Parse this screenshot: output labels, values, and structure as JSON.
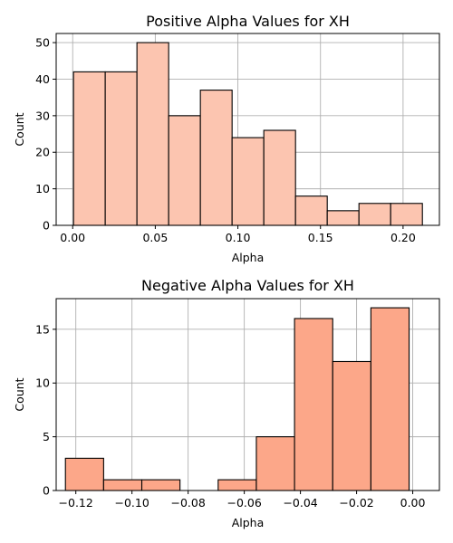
{
  "chart_data": [
    {
      "type": "histogram",
      "title": "Positive Alpha Values for XH",
      "xlabel": "Alpha",
      "ylabel": "Count",
      "xlim": [
        -0.01,
        0.222
      ],
      "ylim": [
        0,
        52.5
      ],
      "xticks": [
        0.0,
        0.05,
        0.1,
        0.15,
        0.2
      ],
      "xtick_labels": [
        "0.00",
        "0.05",
        "0.10",
        "0.15",
        "0.20"
      ],
      "yticks": [
        0,
        10,
        20,
        30,
        40,
        50
      ],
      "ytick_labels": [
        "0",
        "10",
        "20",
        "30",
        "40",
        "50"
      ],
      "bin_edges": [
        0.0005,
        0.0197,
        0.0389,
        0.0581,
        0.0773,
        0.0965,
        0.1157,
        0.1349,
        0.1541,
        0.1733,
        0.1925,
        0.2117
      ],
      "counts": [
        42,
        42,
        50,
        30,
        37,
        24,
        26,
        8,
        4,
        6,
        6
      ],
      "color": "#fcc5b0",
      "grid": true
    },
    {
      "type": "histogram",
      "title": "Negative Alpha Values for XH",
      "xlabel": "Alpha",
      "ylabel": "Count",
      "xlim": [
        -0.127,
        0.0095
      ],
      "ylim": [
        0,
        17.85
      ],
      "xticks": [
        -0.12,
        -0.1,
        -0.08,
        -0.06,
        -0.04,
        -0.02,
        0.0
      ],
      "xtick_labels": [
        "−0.12",
        "−0.10",
        "−0.08",
        "−0.06",
        "−0.04",
        "−0.02",
        "0.00"
      ],
      "yticks": [
        0,
        5,
        10,
        15
      ],
      "ytick_labels": [
        "0",
        "5",
        "10",
        "15"
      ],
      "bin_edges": [
        -0.1237,
        -0.1101,
        -0.0965,
        -0.0829,
        -0.0693,
        -0.0557,
        -0.0421,
        -0.0285,
        -0.0149,
        -0.0013
      ],
      "counts": [
        3,
        1,
        1,
        0,
        1,
        5,
        16,
        12,
        17
      ],
      "color": "#fca789",
      "grid": true
    }
  ]
}
